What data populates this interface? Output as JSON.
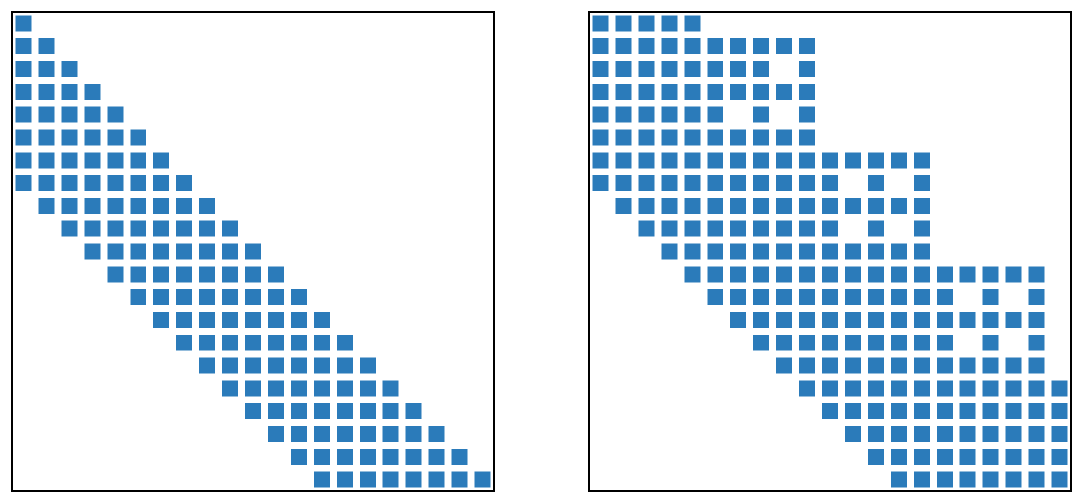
{
  "chart_data": [
    {
      "type": "heatmap",
      "title": "",
      "xlabel": "",
      "ylabel": "",
      "rows": 21,
      "cols": 21,
      "grid": false,
      "axes_ticks": false,
      "color": "#2b7bba",
      "nonzero_rows": [
        {
          "row": 0,
          "cols": [
            [
              0,
              0
            ]
          ]
        },
        {
          "row": 1,
          "cols": [
            [
              0,
              1
            ]
          ]
        },
        {
          "row": 2,
          "cols": [
            [
              0,
              2
            ]
          ]
        },
        {
          "row": 3,
          "cols": [
            [
              0,
              3
            ]
          ]
        },
        {
          "row": 4,
          "cols": [
            [
              0,
              4
            ]
          ]
        },
        {
          "row": 5,
          "cols": [
            [
              0,
              5
            ]
          ]
        },
        {
          "row": 6,
          "cols": [
            [
              0,
              6
            ]
          ]
        },
        {
          "row": 7,
          "cols": [
            [
              0,
              7
            ]
          ]
        },
        {
          "row": 8,
          "cols": [
            [
              1,
              8
            ]
          ]
        },
        {
          "row": 9,
          "cols": [
            [
              2,
              9
            ]
          ]
        },
        {
          "row": 10,
          "cols": [
            [
              3,
              10
            ]
          ]
        },
        {
          "row": 11,
          "cols": [
            [
              4,
              11
            ]
          ]
        },
        {
          "row": 12,
          "cols": [
            [
              5,
              12
            ]
          ]
        },
        {
          "row": 13,
          "cols": [
            [
              6,
              13
            ]
          ]
        },
        {
          "row": 14,
          "cols": [
            [
              7,
              14
            ]
          ]
        },
        {
          "row": 15,
          "cols": [
            [
              8,
              15
            ]
          ]
        },
        {
          "row": 16,
          "cols": [
            [
              9,
              16
            ]
          ]
        },
        {
          "row": 17,
          "cols": [
            [
              10,
              17
            ]
          ]
        },
        {
          "row": 18,
          "cols": [
            [
              11,
              18
            ]
          ]
        },
        {
          "row": 19,
          "cols": [
            [
              12,
              19
            ]
          ]
        },
        {
          "row": 20,
          "cols": [
            [
              13,
              20
            ]
          ]
        }
      ]
    },
    {
      "type": "heatmap",
      "title": "",
      "xlabel": "",
      "ylabel": "",
      "rows": 21,
      "cols": 21,
      "grid": false,
      "axes_ticks": false,
      "color": "#2b7bba",
      "nonzero_rows": [
        {
          "row": 0,
          "cols": [
            [
              0,
              4
            ]
          ]
        },
        {
          "row": 1,
          "cols": [
            [
              0,
              9
            ]
          ]
        },
        {
          "row": 2,
          "cols": [
            [
              0,
              6
            ],
            [
              7,
              7
            ],
            [
              9,
              9
            ]
          ]
        },
        {
          "row": 3,
          "cols": [
            [
              0,
              9
            ]
          ]
        },
        {
          "row": 4,
          "cols": [
            [
              0,
              5
            ],
            [
              7,
              7
            ],
            [
              9,
              9
            ]
          ]
        },
        {
          "row": 5,
          "cols": [
            [
              0,
              9
            ]
          ]
        },
        {
          "row": 6,
          "cols": [
            [
              0,
              14
            ]
          ]
        },
        {
          "row": 7,
          "cols": [
            [
              0,
              10
            ],
            [
              12,
              12
            ],
            [
              14,
              14
            ]
          ]
        },
        {
          "row": 8,
          "cols": [
            [
              1,
              14
            ]
          ]
        },
        {
          "row": 9,
          "cols": [
            [
              2,
              10
            ],
            [
              12,
              12
            ],
            [
              14,
              14
            ]
          ]
        },
        {
          "row": 10,
          "cols": [
            [
              3,
              14
            ]
          ]
        },
        {
          "row": 11,
          "cols": [
            [
              4,
              19
            ]
          ]
        },
        {
          "row": 12,
          "cols": [
            [
              5,
              15
            ],
            [
              17,
              17
            ],
            [
              19,
              19
            ]
          ]
        },
        {
          "row": 13,
          "cols": [
            [
              6,
              19
            ]
          ]
        },
        {
          "row": 14,
          "cols": [
            [
              7,
              15
            ],
            [
              17,
              17
            ],
            [
              19,
              19
            ]
          ]
        },
        {
          "row": 15,
          "cols": [
            [
              8,
              19
            ]
          ]
        },
        {
          "row": 16,
          "cols": [
            [
              9,
              20
            ]
          ]
        },
        {
          "row": 17,
          "cols": [
            [
              10,
              20
            ]
          ]
        },
        {
          "row": 18,
          "cols": [
            [
              11,
              20
            ]
          ]
        },
        {
          "row": 19,
          "cols": [
            [
              12,
              20
            ]
          ]
        },
        {
          "row": 20,
          "cols": [
            [
              13,
              20
            ]
          ]
        }
      ]
    }
  ]
}
